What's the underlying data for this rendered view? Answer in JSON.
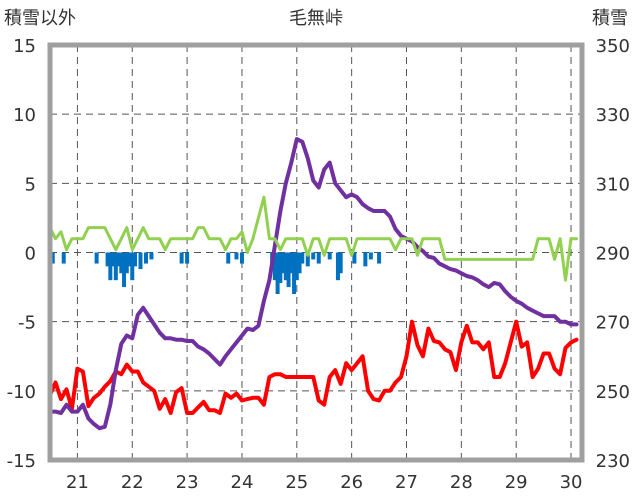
{
  "chart_data": {
    "type": "line",
    "title": "毛無峠",
    "ylabel_left": "積雪以外",
    "ylabel_right": "積雪",
    "ylim_left": [
      -15,
      15
    ],
    "ylim_right": [
      230,
      350
    ],
    "yticks_left": [
      "15",
      "10",
      "5",
      "0",
      "-5",
      "-10",
      "-15"
    ],
    "yticks_right": [
      "350",
      "330",
      "310",
      "290",
      "270",
      "250",
      "230"
    ],
    "xlim": [
      20.5,
      30.2
    ],
    "xticks": [
      "21",
      "22",
      "23",
      "24",
      "25",
      "26",
      "27",
      "28",
      "29",
      "30"
    ],
    "grid": true,
    "series": [
      {
        "name": "red",
        "color": "#ff0000",
        "axis": "left",
        "x": [
          20.5,
          20.6,
          20.7,
          20.8,
          20.9,
          21.0,
          21.1,
          21.2,
          21.3,
          21.4,
          21.5,
          21.6,
          21.7,
          21.8,
          21.9,
          22.0,
          22.1,
          22.2,
          22.3,
          22.4,
          22.5,
          22.6,
          22.7,
          22.8,
          22.9,
          23.0,
          23.1,
          23.2,
          23.3,
          23.4,
          23.5,
          23.6,
          23.7,
          23.8,
          23.9,
          24.0,
          24.1,
          24.2,
          24.3,
          24.4,
          24.5,
          24.6,
          24.7,
          24.8,
          24.9,
          25.0,
          25.1,
          25.2,
          25.3,
          25.4,
          25.5,
          25.6,
          25.7,
          25.8,
          25.9,
          26.0,
          26.1,
          26.2,
          26.3,
          26.4,
          26.5,
          26.6,
          26.7,
          26.8,
          26.9,
          27.0,
          27.1,
          27.2,
          27.3,
          27.4,
          27.5,
          27.6,
          27.7,
          27.8,
          27.9,
          28.0,
          28.1,
          28.2,
          28.3,
          28.4,
          28.5,
          28.6,
          28.7,
          28.8,
          28.9,
          29.0,
          29.1,
          29.2,
          29.3,
          29.4,
          29.5,
          29.6,
          29.7,
          29.8,
          29.9,
          30.0,
          30.1
        ],
        "values": [
          -10.3,
          -9.4,
          -10.6,
          -9.9,
          -11.3,
          -8.4,
          -8.6,
          -11.1,
          -10.5,
          -10.2,
          -9.7,
          -9.3,
          -8.6,
          -8.8,
          -8.1,
          -8.6,
          -8.6,
          -9.4,
          -9.7,
          -10.0,
          -11.3,
          -10.6,
          -11.6,
          -10.1,
          -9.8,
          -11.6,
          -11.6,
          -11.2,
          -10.8,
          -11.4,
          -11.4,
          -11.6,
          -10.2,
          -10.5,
          -10.2,
          -10.7,
          -10.6,
          -10.5,
          -10.5,
          -11.0,
          -9.0,
          -8.8,
          -8.8,
          -9.0,
          -9.0,
          -9.0,
          -9.0,
          -9.0,
          -9.0,
          -10.7,
          -11.0,
          -9.0,
          -8.5,
          -9.5,
          -8.0,
          -8.5,
          -8.0,
          -7.5,
          -10.0,
          -10.6,
          -10.7,
          -10.0,
          -10.0,
          -9.4,
          -9.0,
          -7.5,
          -5.0,
          -6.7,
          -7.5,
          -5.5,
          -6.4,
          -6.5,
          -7.0,
          -7.2,
          -8.5,
          -6.5,
          -5.3,
          -6.5,
          -6.5,
          -7.0,
          -6.5,
          -9.0,
          -9.0,
          -8.0,
          -6.5,
          -5.0,
          -6.8,
          -6.5,
          -9.0,
          -8.4,
          -7.3,
          -7.3,
          -8.4,
          -8.8,
          -6.9,
          -6.5,
          -6.3
        ]
      },
      {
        "name": "purple",
        "color": "#7030a0",
        "axis": "left",
        "x": [
          20.5,
          20.6,
          20.7,
          20.8,
          20.9,
          21.0,
          21.1,
          21.2,
          21.3,
          21.4,
          21.5,
          21.6,
          21.7,
          21.8,
          21.9,
          22.0,
          22.1,
          22.2,
          22.3,
          22.4,
          22.5,
          22.6,
          22.7,
          22.8,
          22.9,
          23.0,
          23.1,
          23.2,
          23.3,
          23.4,
          23.5,
          23.6,
          23.7,
          23.8,
          23.9,
          24.0,
          24.1,
          24.2,
          24.3,
          24.4,
          24.5,
          24.6,
          24.7,
          24.8,
          24.9,
          25.0,
          25.1,
          25.2,
          25.3,
          25.4,
          25.5,
          25.6,
          25.7,
          25.8,
          25.9,
          26.0,
          26.1,
          26.2,
          26.3,
          26.4,
          26.5,
          26.6,
          26.7,
          26.8,
          26.9,
          27.0,
          27.1,
          27.2,
          27.3,
          27.4,
          27.5,
          27.6,
          27.7,
          27.8,
          27.9,
          28.0,
          28.1,
          28.2,
          28.3,
          28.4,
          28.5,
          28.6,
          28.7,
          28.8,
          28.9,
          29.0,
          29.1,
          29.2,
          29.3,
          29.4,
          29.5,
          29.6,
          29.7,
          29.8,
          29.9,
          30.0,
          30.1
        ],
        "values": [
          -11.5,
          -11.5,
          -11.6,
          -11.0,
          -11.5,
          -11.5,
          -11.0,
          -12.0,
          -12.4,
          -12.7,
          -12.6,
          -11.0,
          -8.5,
          -6.6,
          -6.0,
          -6.2,
          -4.5,
          -4.0,
          -4.6,
          -5.2,
          -5.8,
          -6.2,
          -6.2,
          -6.3,
          -6.3,
          -6.4,
          -6.4,
          -6.8,
          -7.0,
          -7.3,
          -7.7,
          -8.1,
          -7.5,
          -7.0,
          -6.5,
          -6.0,
          -5.5,
          -5.6,
          -5.3,
          -3.5,
          -2.0,
          0.5,
          3.0,
          5.0,
          6.5,
          8.2,
          8.0,
          6.8,
          5.2,
          4.7,
          6.0,
          6.5,
          5.0,
          4.5,
          4.0,
          4.2,
          4.0,
          3.5,
          3.2,
          3.0,
          3.0,
          3.0,
          2.6,
          1.7,
          1.2,
          1.0,
          0.8,
          0.4,
          0.1,
          -0.3,
          -0.4,
          -0.8,
          -1.0,
          -1.2,
          -1.3,
          -1.5,
          -1.7,
          -1.8,
          -2.0,
          -2.3,
          -2.5,
          -2.2,
          -2.3,
          -2.8,
          -3.2,
          -3.5,
          -3.7,
          -4.0,
          -4.2,
          -4.4,
          -4.6,
          -4.6,
          -4.6,
          -5.0,
          -5.0,
          -5.2,
          -5.2
        ]
      },
      {
        "name": "green",
        "color": "#92d050",
        "axis": "left",
        "x": [
          20.5,
          20.6,
          20.7,
          20.8,
          20.9,
          21.0,
          21.1,
          21.2,
          21.3,
          21.4,
          21.5,
          21.6,
          21.7,
          21.8,
          21.9,
          22.0,
          22.1,
          22.2,
          22.3,
          22.4,
          22.5,
          22.6,
          22.7,
          22.8,
          22.9,
          23.0,
          23.1,
          23.2,
          23.3,
          23.4,
          23.5,
          23.6,
          23.7,
          23.8,
          23.9,
          24.0,
          24.1,
          24.2,
          24.3,
          24.4,
          24.5,
          24.6,
          24.7,
          24.8,
          24.9,
          25.0,
          25.1,
          25.2,
          25.3,
          25.4,
          25.5,
          25.6,
          25.7,
          25.8,
          25.9,
          26.0,
          26.1,
          26.2,
          26.3,
          26.4,
          26.5,
          26.6,
          26.7,
          26.8,
          26.9,
          27.0,
          27.1,
          27.2,
          27.3,
          27.4,
          27.5,
          27.6,
          27.7,
          27.8,
          27.9,
          28.0,
          28.1,
          28.2,
          28.3,
          28.4,
          28.5,
          28.6,
          28.7,
          28.8,
          28.9,
          29.0,
          29.1,
          29.2,
          29.3,
          29.4,
          29.5,
          29.6,
          29.7,
          29.8,
          29.9,
          30.0,
          30.1
        ],
        "values": [
          1.8,
          1.0,
          1.5,
          0.2,
          1.0,
          1.0,
          1.0,
          1.8,
          1.8,
          1.8,
          1.8,
          1.0,
          0.2,
          1.0,
          1.8,
          0.2,
          1.0,
          1.8,
          1.0,
          1.0,
          1.0,
          0.2,
          1.0,
          1.0,
          1.0,
          1.0,
          1.0,
          1.8,
          1.8,
          1.0,
          1.0,
          1.0,
          0.2,
          1.0,
          1.0,
          1.5,
          0.0,
          1.0,
          2.5,
          4.0,
          1.0,
          1.0,
          0.2,
          1.0,
          1.0,
          1.0,
          1.0,
          -0.2,
          1.0,
          1.0,
          -0.2,
          1.0,
          1.0,
          1.0,
          1.0,
          -0.2,
          1.0,
          1.0,
          1.0,
          1.0,
          1.0,
          1.0,
          1.0,
          0.2,
          1.0,
          1.0,
          1.0,
          -0.2,
          1.0,
          1.0,
          1.0,
          1.0,
          -0.5,
          -0.5,
          -0.5,
          -0.5,
          -0.5,
          -0.5,
          -0.5,
          -0.5,
          -0.5,
          -0.5,
          -0.5,
          -0.5,
          -0.5,
          -0.5,
          -0.5,
          -0.5,
          -0.5,
          1.0,
          1.0,
          1.0,
          -0.5,
          1.0,
          -2.0,
          1.0,
          1.0
        ]
      }
    ],
    "bars": {
      "name": "blue",
      "color": "#0070c0",
      "axis": "left",
      "x": [
        20.55,
        20.75,
        21.35,
        21.55,
        21.6,
        21.65,
        21.7,
        21.75,
        21.8,
        21.85,
        21.9,
        21.95,
        22.0,
        22.05,
        22.15,
        22.25,
        22.35,
        22.9,
        23.0,
        23.75,
        23.9,
        24.0,
        24.55,
        24.6,
        24.65,
        24.7,
        24.75,
        24.8,
        24.85,
        24.9,
        24.95,
        25.0,
        25.05,
        25.1,
        25.2,
        25.3,
        25.4,
        25.6,
        25.75,
        25.8,
        26.05,
        26.25,
        26.35,
        26.5
      ],
      "values": [
        -0.8,
        -0.8,
        -0.8,
        -1.0,
        -2.0,
        -1.0,
        -2.0,
        -1.0,
        -1.5,
        -2.5,
        -1.5,
        -1.0,
        -2.0,
        -1.0,
        -1.2,
        -0.8,
        -0.5,
        -0.8,
        -0.8,
        -0.8,
        -0.5,
        -0.8,
        -0.8,
        -2.0,
        -3.0,
        -2.2,
        -1.5,
        -2.0,
        -2.5,
        -1.5,
        -3.0,
        -2.0,
        -1.5,
        -0.8,
        -1.0,
        -0.5,
        -0.8,
        -0.5,
        -2.0,
        -1.5,
        -0.8,
        -1.0,
        -0.5,
        -0.8
      ]
    }
  }
}
